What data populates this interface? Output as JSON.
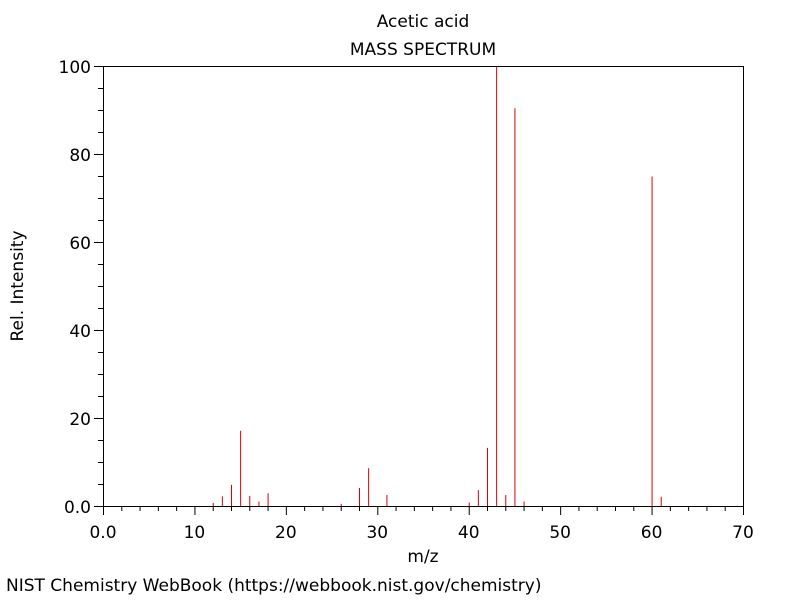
{
  "chart_data": {
    "type": "bar",
    "compound": "Acetic acid",
    "title": "MASS SPECTRUM",
    "xlabel": "m/z",
    "ylabel": "Rel. Intensity",
    "xlim": [
      0,
      70
    ],
    "ylim": [
      0,
      100
    ],
    "x_ticks": [
      "0.0",
      "10",
      "20",
      "30",
      "40",
      "50",
      "60",
      "70"
    ],
    "y_ticks": [
      "0.0",
      "20",
      "40",
      "60",
      "80",
      "100"
    ],
    "bar_color": "#e00000",
    "grid": false,
    "peaks": [
      {
        "mz": 12,
        "intensity": 0.7
      },
      {
        "mz": 13,
        "intensity": 2.2
      },
      {
        "mz": 14,
        "intensity": 4.8
      },
      {
        "mz": 15,
        "intensity": 17.1
      },
      {
        "mz": 16,
        "intensity": 2.3
      },
      {
        "mz": 17,
        "intensity": 1.0
      },
      {
        "mz": 18,
        "intensity": 2.9
      },
      {
        "mz": 26,
        "intensity": 0.5
      },
      {
        "mz": 28,
        "intensity": 4.1
      },
      {
        "mz": 29,
        "intensity": 8.6
      },
      {
        "mz": 31,
        "intensity": 2.5
      },
      {
        "mz": 40,
        "intensity": 0.8
      },
      {
        "mz": 41,
        "intensity": 3.6
      },
      {
        "mz": 42,
        "intensity": 13.2
      },
      {
        "mz": 43,
        "intensity": 100.0
      },
      {
        "mz": 44,
        "intensity": 2.5
      },
      {
        "mz": 45,
        "intensity": 90.4
      },
      {
        "mz": 46,
        "intensity": 1.0
      },
      {
        "mz": 60,
        "intensity": 74.9
      },
      {
        "mz": 61,
        "intensity": 2.1
      }
    ]
  },
  "footer": {
    "source": "NIST Chemistry WebBook (https://webbook.nist.gov/chemistry)"
  }
}
